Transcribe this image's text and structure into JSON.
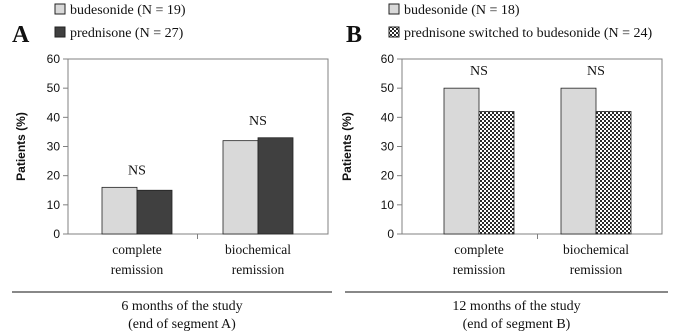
{
  "colors": {
    "light_bar": "#d9d9d9",
    "dark_bar": "#404040",
    "checker_dark": "#2b2b2b",
    "axis": "#808080",
    "outline": "#222222"
  },
  "chart_data": [
    {
      "type": "bar",
      "panel_label": "A",
      "ylabel": "Patients (%)",
      "ylim": [
        0,
        60
      ],
      "ytick_step": 10,
      "categories": [
        [
          "complete",
          "remission"
        ],
        [
          "biochemical",
          "remission"
        ]
      ],
      "series": [
        {
          "name": "budesonide (N = 19)",
          "pattern": "light",
          "values": [
            16,
            32
          ]
        },
        {
          "name": "prednisone (N = 27)",
          "pattern": "dark",
          "values": [
            15,
            33
          ]
        }
      ],
      "annotations": [
        "NS",
        "NS"
      ],
      "footer": [
        "6 months of the study",
        "(end of segment A)"
      ]
    },
    {
      "type": "bar",
      "panel_label": "B",
      "ylabel": "Patients (%)",
      "ylim": [
        0,
        60
      ],
      "ytick_step": 10,
      "categories": [
        [
          "complete",
          "remission"
        ],
        [
          "biochemical",
          "remission"
        ]
      ],
      "series": [
        {
          "name": "budesonide (N = 18)",
          "pattern": "light",
          "values": [
            50,
            50
          ]
        },
        {
          "name": "prednisone switched to budesonide (N = 24)",
          "pattern": "checker",
          "values": [
            42,
            42
          ]
        }
      ],
      "annotations": [
        "NS",
        "NS"
      ],
      "footer": [
        "12 months of the study",
        "(end of segment B)"
      ]
    }
  ]
}
